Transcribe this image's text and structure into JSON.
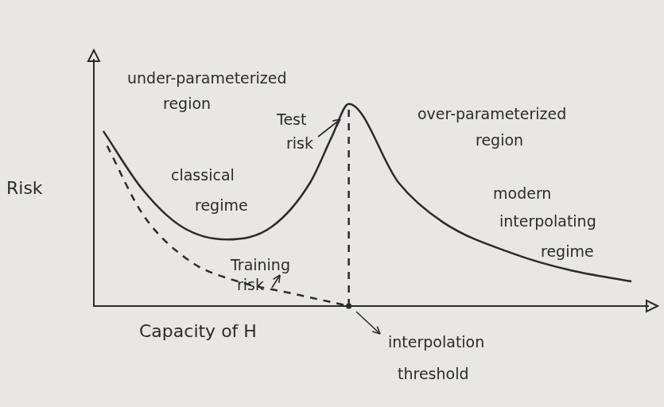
{
  "chart_data": {
    "type": "line",
    "x_label": "Capacity of H",
    "y_label": "Risk",
    "xlim": [
      0,
      100
    ],
    "ylim": [
      0,
      100
    ],
    "grid": false,
    "tick_labels": false,
    "series": [
      {
        "name": "Test risk",
        "color": "#2b2b2b",
        "line_style": "solid",
        "x": [
          1.7,
          8.9,
          16,
          24,
          32,
          39,
          43,
          46,
          55,
          63,
          76,
          86,
          97
        ],
        "values": [
          71,
          47,
          32,
          27,
          32,
          50,
          69,
          82,
          50,
          34,
          21,
          14.5,
          10
        ]
      },
      {
        "name": "Training risk",
        "color": "#2b2b2b",
        "line_style": "dashed",
        "x": [
          2.4,
          8.9,
          17.5,
          26,
          36,
          46
        ],
        "values": [
          65,
          37,
          18,
          10,
          5,
          0
        ]
      },
      {
        "color": "#2b2b2b",
        "line_style": "dashed",
        "x": [
          46,
          46
        ],
        "values": [
          0,
          82
        ]
      }
    ],
    "annotations": [
      [
        "under-parameterized",
        "region"
      ],
      [
        "classical",
        "regime"
      ],
      [
        "over-parameterized",
        "region"
      ],
      [
        "modern",
        "interpolating",
        "regime"
      ],
      [
        "interpolation",
        "threshold"
      ]
    ]
  }
}
